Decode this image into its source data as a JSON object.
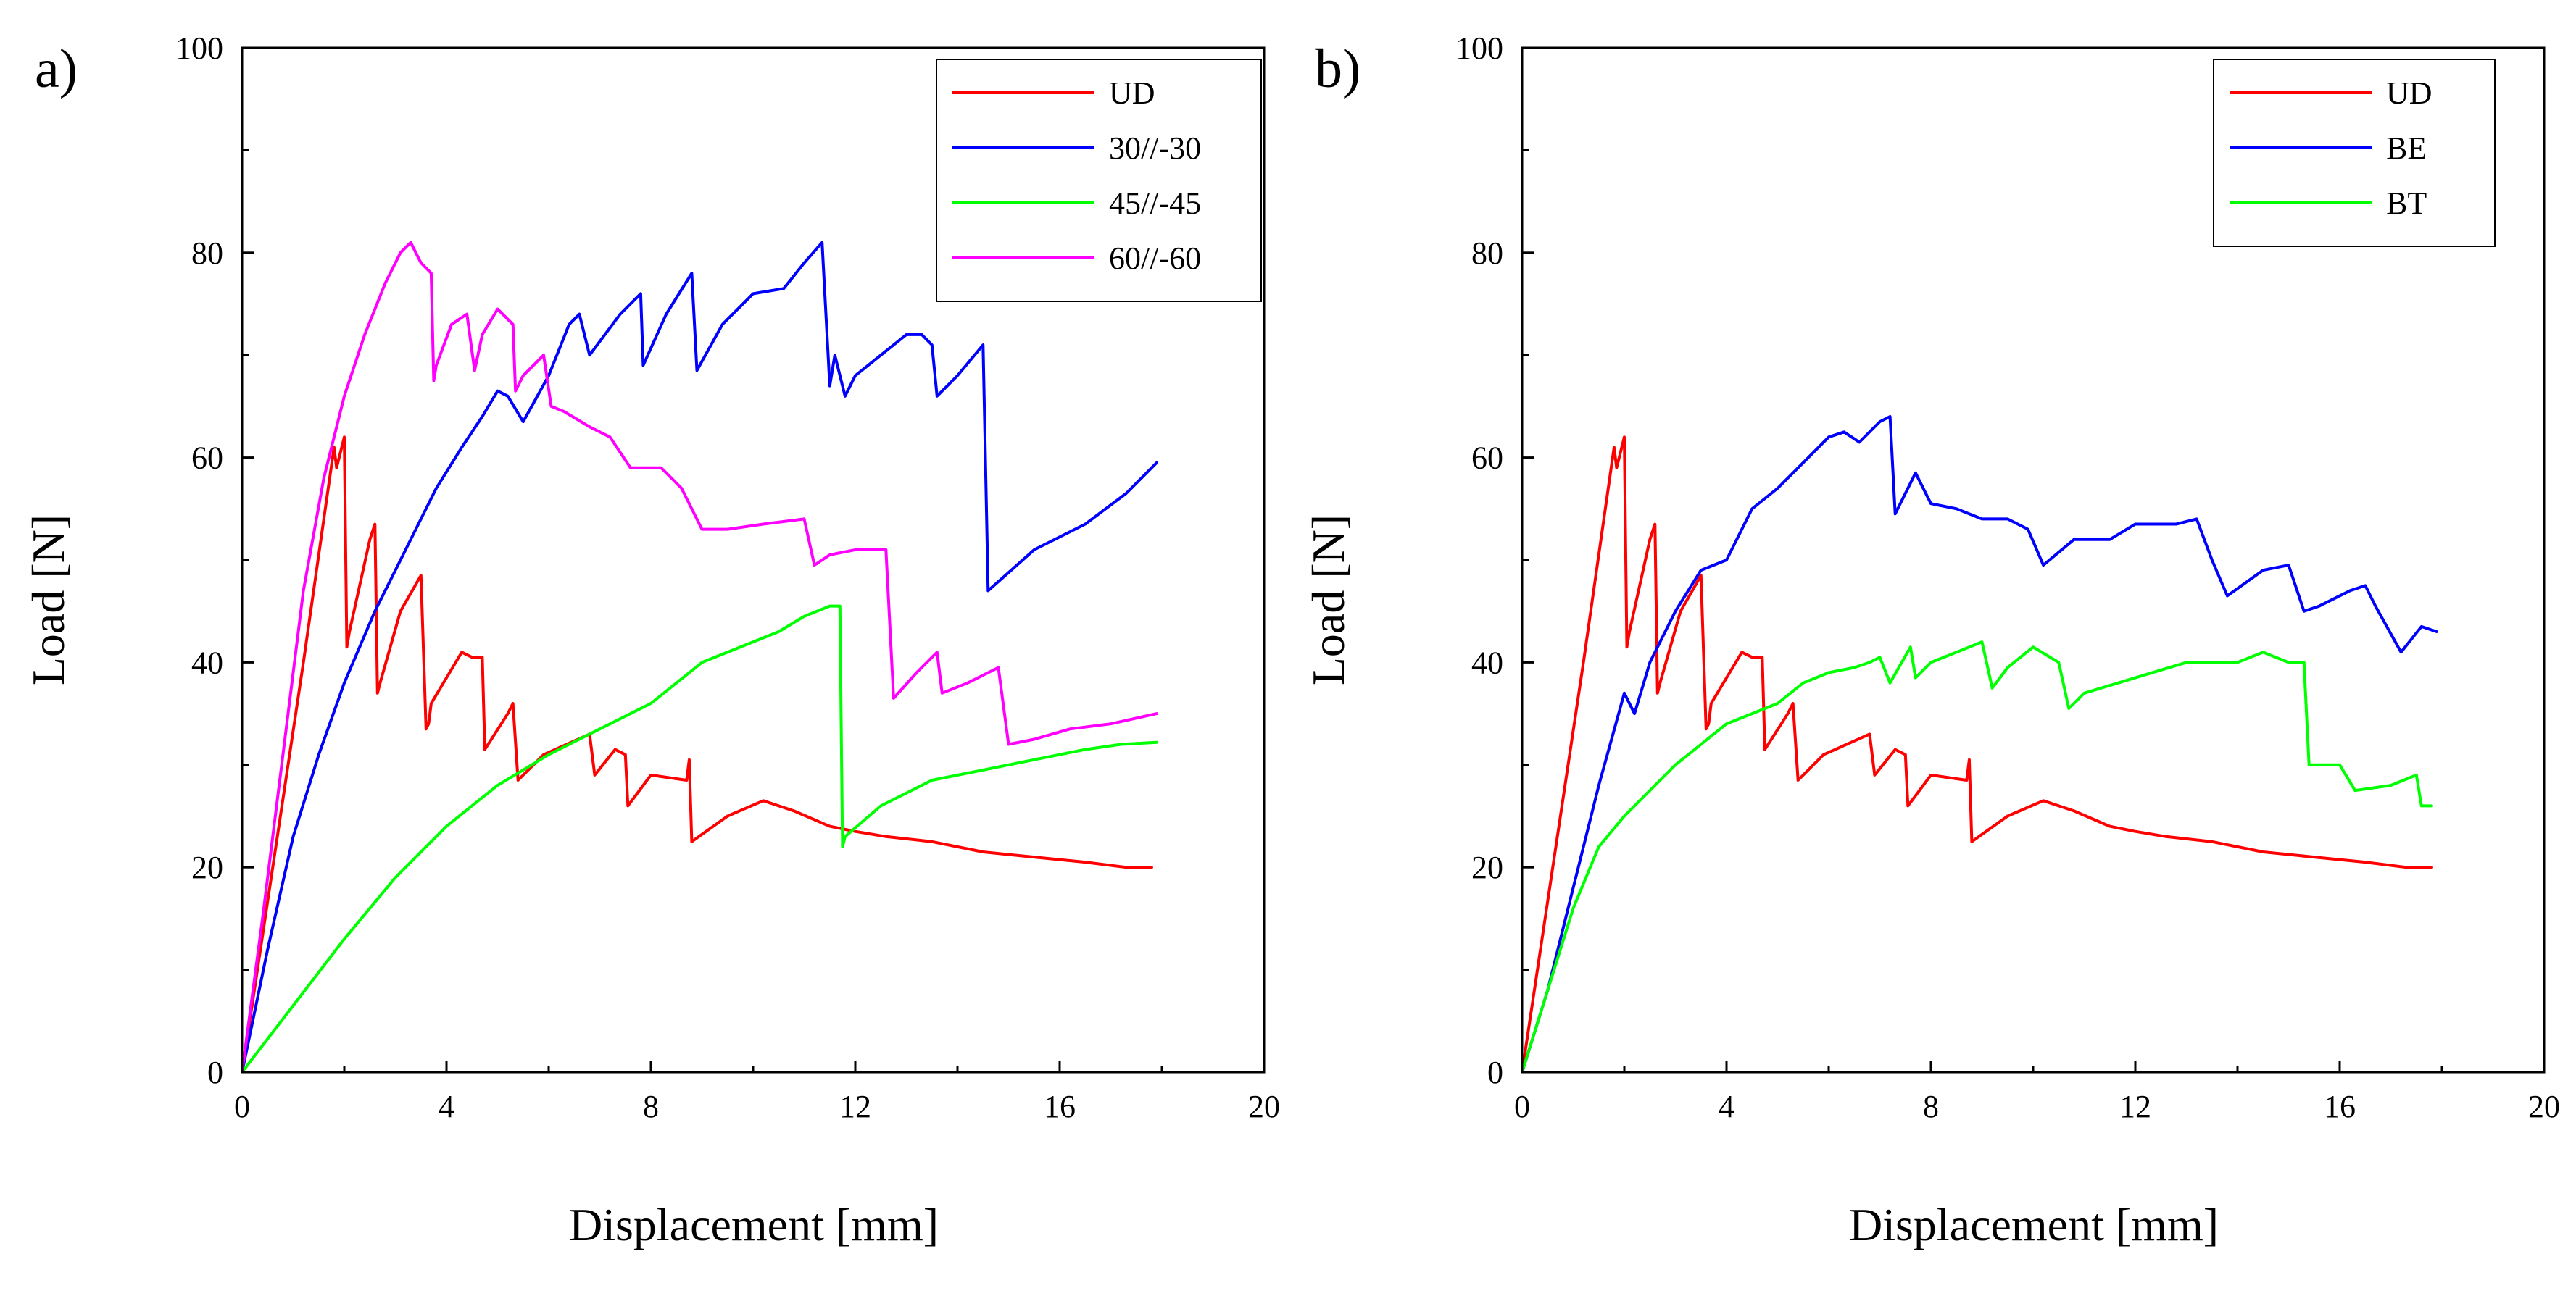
{
  "chart_data": [
    {
      "type": "line",
      "panel_label": "a)",
      "xlabel": "Displacement [mm]",
      "ylabel": "Load [N]",
      "xlim": [
        0,
        20
      ],
      "ylim": [
        0,
        100
      ],
      "xticks": [
        "0",
        "4",
        "8",
        "12",
        "16",
        "20"
      ],
      "yticks": [
        "0",
        "20",
        "40",
        "60",
        "80",
        "100"
      ],
      "legend_position": "top-right",
      "series": [
        {
          "name": "UD",
          "color": "#ff0000",
          "x": [
            0,
            0.6,
            1.2,
            1.8,
            1.85,
            2.0,
            2.05,
            2.1,
            2.5,
            2.6,
            2.65,
            2.7,
            3.1,
            3.5,
            3.6,
            3.65,
            3.7,
            4.3,
            4.5,
            4.7,
            4.75,
            5.2,
            5.3,
            5.4,
            5.9,
            6.8,
            6.9,
            7.3,
            7.5,
            7.55,
            8.0,
            8.7,
            8.75,
            8.8,
            9.5,
            10.2,
            10.8,
            11.5,
            12.0,
            12.6,
            13.5,
            14.5,
            15.5,
            16.5,
            17.3,
            17.8
          ],
          "y": [
            0,
            20,
            40,
            61,
            59,
            62,
            41.5,
            43,
            52,
            53.5,
            37,
            38,
            45,
            48.5,
            33.5,
            34,
            36,
            41,
            40.5,
            40.5,
            31.5,
            35,
            36,
            28.5,
            31,
            33,
            29,
            31.5,
            31,
            26,
            29,
            28.5,
            30.5,
            22.5,
            25,
            26.5,
            25.5,
            24,
            23.5,
            23,
            22.5,
            21.5,
            21,
            20.5,
            20,
            20
          ]
        },
        {
          "name": "30//-30",
          "color": "#0000ff",
          "x": [
            0,
            0.5,
            1.0,
            1.5,
            2.0,
            2.6,
            3.2,
            3.8,
            4.3,
            4.7,
            5.0,
            5.2,
            5.5,
            6.0,
            6.4,
            6.6,
            6.8,
            7.4,
            7.8,
            7.85,
            8.3,
            8.8,
            8.9,
            9.4,
            10.0,
            10.6,
            11.0,
            11.35,
            11.5,
            11.6,
            11.8,
            12.0,
            12.5,
            13.0,
            13.3,
            13.5,
            13.6,
            14.0,
            14.5,
            14.6,
            15.5,
            16.5,
            17.3,
            17.9
          ],
          "y": [
            0,
            12,
            23,
            31,
            38,
            45,
            51,
            57,
            61,
            64,
            66.5,
            66,
            63.5,
            68,
            73,
            74,
            70,
            74,
            76,
            69,
            74,
            78,
            68.5,
            73,
            76,
            76.5,
            79,
            81,
            67,
            70,
            66,
            68,
            70,
            72,
            72,
            71,
            66,
            68,
            71,
            47,
            51,
            53.5,
            56.5,
            59.5
          ]
        },
        {
          "name": "45//-45",
          "color": "#00ff00",
          "x": [
            0,
            1,
            2,
            3,
            4,
            5,
            6,
            7,
            8,
            9,
            10,
            10.5,
            11.0,
            11.5,
            11.7,
            11.75,
            11.8,
            12.5,
            13.5,
            14.5,
            15.5,
            16.5,
            17.2,
            17.9
          ],
          "y": [
            0,
            6.5,
            13,
            19,
            24,
            28,
            31,
            33.5,
            36,
            40,
            42,
            43,
            44.5,
            45.5,
            45.5,
            22,
            23,
            26,
            28.5,
            29.5,
            30.5,
            31.5,
            32,
            32.2
          ]
        },
        {
          "name": "60//-60",
          "color": "#ff00ff",
          "x": [
            0,
            0.4,
            0.8,
            1.2,
            1.6,
            2.0,
            2.4,
            2.8,
            3.1,
            3.3,
            3.5,
            3.7,
            3.75,
            3.8,
            4.1,
            4.4,
            4.55,
            4.7,
            5.0,
            5.3,
            5.35,
            5.5,
            5.9,
            6.05,
            6.3,
            6.8,
            7.2,
            7.6,
            8.2,
            8.6,
            9.0,
            9.5,
            10.2,
            11.0,
            11.2,
            11.5,
            12.0,
            12.6,
            12.75,
            13.2,
            13.6,
            13.7,
            14.2,
            14.8,
            15.0,
            15.5,
            16.2,
            17.0,
            17.9
          ],
          "y": [
            0,
            15,
            31,
            47,
            58,
            66,
            72,
            77,
            80,
            81,
            79,
            78,
            67.5,
            69,
            73,
            74,
            68.5,
            72,
            74.5,
            73,
            66.5,
            68,
            70,
            65,
            64.5,
            63,
            62,
            59,
            59,
            57,
            53,
            53,
            53.5,
            54,
            49.5,
            50.5,
            51,
            51,
            36.5,
            39,
            41,
            37,
            38,
            39.5,
            32,
            32.5,
            33.5,
            34,
            35
          ]
        }
      ]
    },
    {
      "type": "line",
      "panel_label": "b)",
      "xlabel": "Displacement [mm]",
      "ylabel": "Load [N]",
      "xlim": [
        0,
        20
      ],
      "ylim": [
        0,
        100
      ],
      "xticks": [
        "0",
        "4",
        "8",
        "12",
        "16",
        "20"
      ],
      "yticks": [
        "0",
        "20",
        "40",
        "60",
        "80",
        "100"
      ],
      "legend_position": "top-right",
      "series": [
        {
          "name": "UD",
          "color": "#ff0000",
          "x": [
            0,
            0.6,
            1.2,
            1.8,
            1.85,
            2.0,
            2.05,
            2.1,
            2.5,
            2.6,
            2.65,
            2.7,
            3.1,
            3.5,
            3.6,
            3.65,
            3.7,
            4.3,
            4.5,
            4.7,
            4.75,
            5.2,
            5.3,
            5.4,
            5.9,
            6.8,
            6.9,
            7.3,
            7.5,
            7.55,
            8.0,
            8.7,
            8.75,
            8.8,
            9.5,
            10.2,
            10.8,
            11.5,
            12.0,
            12.6,
            13.5,
            14.5,
            15.5,
            16.5,
            17.3,
            17.8
          ],
          "y": [
            0,
            20,
            40,
            61,
            59,
            62,
            41.5,
            43,
            52,
            53.5,
            37,
            38,
            45,
            48.5,
            33.5,
            34,
            36,
            41,
            40.5,
            40.5,
            31.5,
            35,
            36,
            28.5,
            31,
            33,
            29,
            31.5,
            31,
            26,
            29,
            28.5,
            30.5,
            22.5,
            25,
            26.5,
            25.5,
            24,
            23.5,
            23,
            22.5,
            21.5,
            21,
            20.5,
            20,
            20
          ]
        },
        {
          "name": "BE",
          "color": "#0000ff",
          "x": [
            0,
            0.5,
            1.0,
            1.5,
            2.0,
            2.2,
            2.5,
            3.0,
            3.5,
            4.0,
            4.5,
            5.0,
            5.5,
            6.0,
            6.3,
            6.6,
            7.0,
            7.2,
            7.3,
            7.7,
            8.0,
            8.5,
            9.0,
            9.5,
            9.9,
            10.2,
            10.8,
            11.5,
            12.0,
            12.8,
            13.2,
            13.5,
            13.8,
            14.5,
            15.0,
            15.3,
            15.6,
            16.2,
            16.5,
            16.7,
            17.2,
            17.6,
            17.9
          ],
          "y": [
            0,
            8,
            18,
            28,
            37,
            35,
            40,
            45,
            49,
            50,
            55,
            57,
            59.5,
            62,
            62.5,
            61.5,
            63.5,
            64,
            54.5,
            58.5,
            55.5,
            55,
            54,
            54,
            53,
            49.5,
            52,
            52,
            53.5,
            53.5,
            54,
            50,
            46.5,
            49,
            49.5,
            45,
            45.5,
            47,
            47.5,
            45.5,
            41,
            43.5,
            43
          ]
        },
        {
          "name": "BT",
          "color": "#00ff00",
          "x": [
            0,
            0.5,
            1.0,
            1.5,
            2.0,
            2.5,
            3.0,
            3.5,
            4.0,
            4.5,
            5.0,
            5.5,
            6.0,
            6.5,
            6.8,
            7.0,
            7.2,
            7.6,
            7.7,
            8.0,
            8.5,
            9.0,
            9.2,
            9.5,
            10.0,
            10.5,
            10.7,
            11.0,
            12.0,
            13.0,
            14.0,
            14.5,
            15.0,
            15.3,
            15.4,
            15.5,
            16.0,
            16.3,
            17.0,
            17.5,
            17.6,
            17.8
          ],
          "y": [
            0,
            8,
            16,
            22,
            25,
            27.5,
            30,
            32,
            34,
            35,
            36,
            38,
            39,
            39.5,
            40,
            40.5,
            38,
            41.5,
            38.5,
            40,
            41,
            42,
            37.5,
            39.5,
            41.5,
            40,
            35.5,
            37,
            38.5,
            40,
            40,
            41,
            40,
            40,
            30,
            30,
            30,
            27.5,
            28,
            29,
            26,
            26
          ]
        }
      ]
    }
  ]
}
